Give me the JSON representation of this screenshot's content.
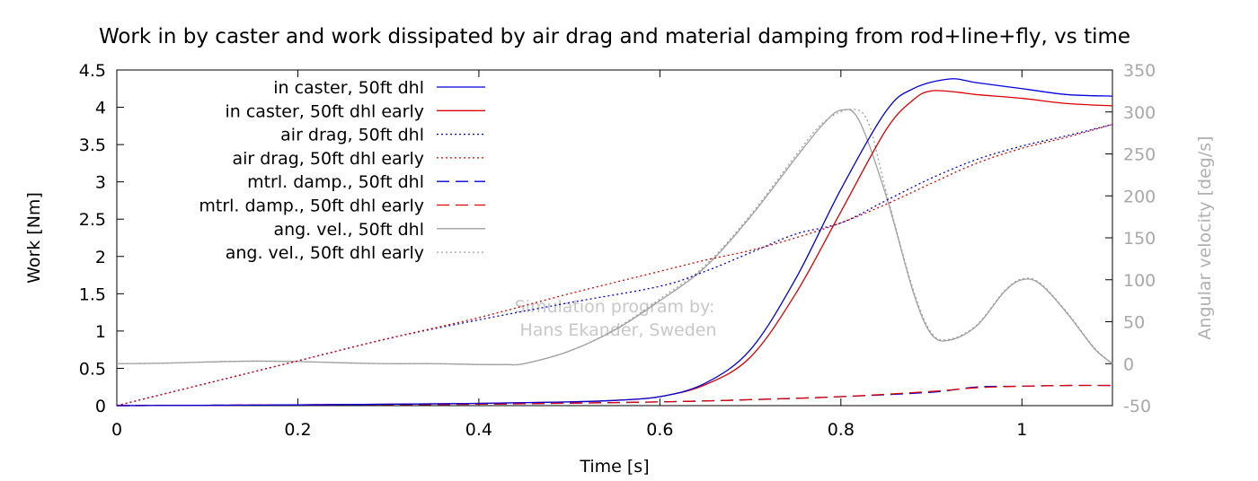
{
  "chart_data": {
    "type": "line",
    "title": "Work in by caster and work dissipated by air drag and material damping from rod+line+fly, vs time",
    "xlabel": "Time [s]",
    "ylabel": "Work [Nm]",
    "y2label": "Angular velocity [deg/s]",
    "xlim": [
      0,
      1.1
    ],
    "ylim": [
      0,
      4.5
    ],
    "y2lim": [
      -50,
      350
    ],
    "xticks": [
      0,
      0.2,
      0.4,
      0.6,
      0.8,
      1
    ],
    "xtick_labels": [
      "0",
      "0.2",
      "0.4",
      "0.6",
      "0.8",
      "1"
    ],
    "yticks": [
      0,
      0.5,
      1,
      1.5,
      2,
      2.5,
      3,
      3.5,
      4,
      4.5
    ],
    "ytick_labels": [
      "0",
      "0.5",
      "1",
      "1.5",
      "2",
      "2.5",
      "3",
      "3.5",
      "4",
      "4.5"
    ],
    "y2ticks": [
      -50,
      0,
      50,
      100,
      150,
      200,
      250,
      300,
      350
    ],
    "y2tick_labels": [
      "-50",
      "0",
      "50",
      "100",
      "150",
      "200",
      "250",
      "300",
      "350"
    ],
    "grid": false,
    "legend_position": "top-left",
    "annotation": [
      "Simulation program by:",
      "Hans Ekander, Sweden"
    ],
    "series": [
      {
        "name": "in caster, 50ft dhl",
        "color": "#0000dd",
        "style": "solid",
        "axis": "y",
        "x": [
          0,
          0.2,
          0.4,
          0.5,
          0.55,
          0.6,
          0.65,
          0.7,
          0.75,
          0.8,
          0.85,
          0.88,
          0.92,
          0.95,
          1.0,
          1.05,
          1.1
        ],
        "y": [
          0,
          0.01,
          0.03,
          0.05,
          0.07,
          0.12,
          0.3,
          0.75,
          1.7,
          2.9,
          3.95,
          4.25,
          4.38,
          4.33,
          4.25,
          4.17,
          4.15
        ]
      },
      {
        "name": "in caster, 50ft dhl early",
        "color": "#dd0000",
        "style": "solid",
        "axis": "y",
        "x": [
          0,
          0.2,
          0.4,
          0.5,
          0.55,
          0.6,
          0.65,
          0.7,
          0.75,
          0.8,
          0.85,
          0.88,
          0.9,
          0.93,
          0.95,
          1.0,
          1.05,
          1.1
        ],
        "y": [
          0,
          0.01,
          0.03,
          0.05,
          0.07,
          0.12,
          0.28,
          0.65,
          1.5,
          2.6,
          3.7,
          4.1,
          4.22,
          4.2,
          4.17,
          4.12,
          4.05,
          4.02
        ]
      },
      {
        "name": "air drag, 50ft dhl",
        "color": "#0000dd",
        "style": "dotted",
        "axis": "y",
        "x": [
          0,
          0.1,
          0.2,
          0.3,
          0.4,
          0.5,
          0.6,
          0.65,
          0.7,
          0.75,
          0.8,
          0.85,
          0.9,
          0.95,
          1.0,
          1.05,
          1.1
        ],
        "y": [
          0,
          0.3,
          0.6,
          0.9,
          1.15,
          1.38,
          1.6,
          1.8,
          2.05,
          2.3,
          2.45,
          2.75,
          3.05,
          3.3,
          3.48,
          3.62,
          3.77
        ]
      },
      {
        "name": "air drag, 50ft dhl early",
        "color": "#dd0000",
        "style": "dotted",
        "axis": "y",
        "x": [
          0,
          0.1,
          0.2,
          0.3,
          0.4,
          0.5,
          0.6,
          0.65,
          0.7,
          0.75,
          0.8,
          0.85,
          0.9,
          0.95,
          1.0,
          1.05,
          1.1
        ],
        "y": [
          0,
          0.3,
          0.6,
          0.9,
          1.18,
          1.5,
          1.8,
          1.95,
          2.08,
          2.25,
          2.45,
          2.7,
          2.98,
          3.25,
          3.45,
          3.6,
          3.77
        ]
      },
      {
        "name": "mtrl. damp., 50ft dhl",
        "color": "#0000dd",
        "style": "dashed",
        "axis": "y",
        "x": [
          0,
          0.2,
          0.4,
          0.6,
          0.7,
          0.8,
          0.9,
          0.95,
          1.0,
          1.05,
          1.1
        ],
        "y": [
          0,
          0.01,
          0.02,
          0.05,
          0.08,
          0.12,
          0.18,
          0.25,
          0.26,
          0.27,
          0.27
        ]
      },
      {
        "name": "mtrl. damp., 50ft dhl early",
        "color": "#dd0000",
        "style": "dashed",
        "axis": "y",
        "x": [
          0,
          0.2,
          0.4,
          0.6,
          0.7,
          0.8,
          0.9,
          0.95,
          1.0,
          1.05,
          1.1
        ],
        "y": [
          0,
          0.01,
          0.02,
          0.05,
          0.08,
          0.12,
          0.19,
          0.24,
          0.26,
          0.27,
          0.27
        ]
      },
      {
        "name": "ang. vel., 50ft dhl",
        "color": "#a0a0a0",
        "style": "solid",
        "axis": "y2",
        "x": [
          0,
          0.05,
          0.1,
          0.15,
          0.2,
          0.25,
          0.3,
          0.35,
          0.4,
          0.43,
          0.45,
          0.5,
          0.55,
          0.6,
          0.65,
          0.7,
          0.75,
          0.78,
          0.8,
          0.82,
          0.85,
          0.88,
          0.9,
          0.92,
          0.95,
          0.98,
          1.0,
          1.02,
          1.05,
          1.08,
          1.1
        ],
        "y": [
          0,
          0.5,
          2,
          3,
          2.5,
          1,
          0,
          0,
          -1,
          -1,
          0,
          15,
          40,
          75,
          115,
          175,
          245,
          285,
          302,
          290,
          200,
          85,
          35,
          28,
          45,
          85,
          100,
          95,
          60,
          18,
          0
        ]
      },
      {
        "name": "ang. vel., 50ft dhl early",
        "color": "#a0a0a0",
        "style": "dotted",
        "axis": "y2",
        "x": [
          0,
          0.05,
          0.1,
          0.15,
          0.2,
          0.25,
          0.3,
          0.35,
          0.4,
          0.43,
          0.45,
          0.5,
          0.55,
          0.6,
          0.65,
          0.7,
          0.75,
          0.78,
          0.81,
          0.83,
          0.85,
          0.88,
          0.9,
          0.92,
          0.95,
          0.98,
          1.0,
          1.02,
          1.05,
          1.08,
          1.1
        ],
        "y": [
          0,
          0.5,
          2,
          3,
          2.5,
          1,
          0,
          0,
          -1,
          -1,
          0,
          15,
          41,
          77,
          117,
          177,
          248,
          287,
          303,
          288,
          205,
          88,
          37,
          29,
          46,
          86,
          101,
          96,
          61,
          19,
          0
        ]
      }
    ]
  }
}
